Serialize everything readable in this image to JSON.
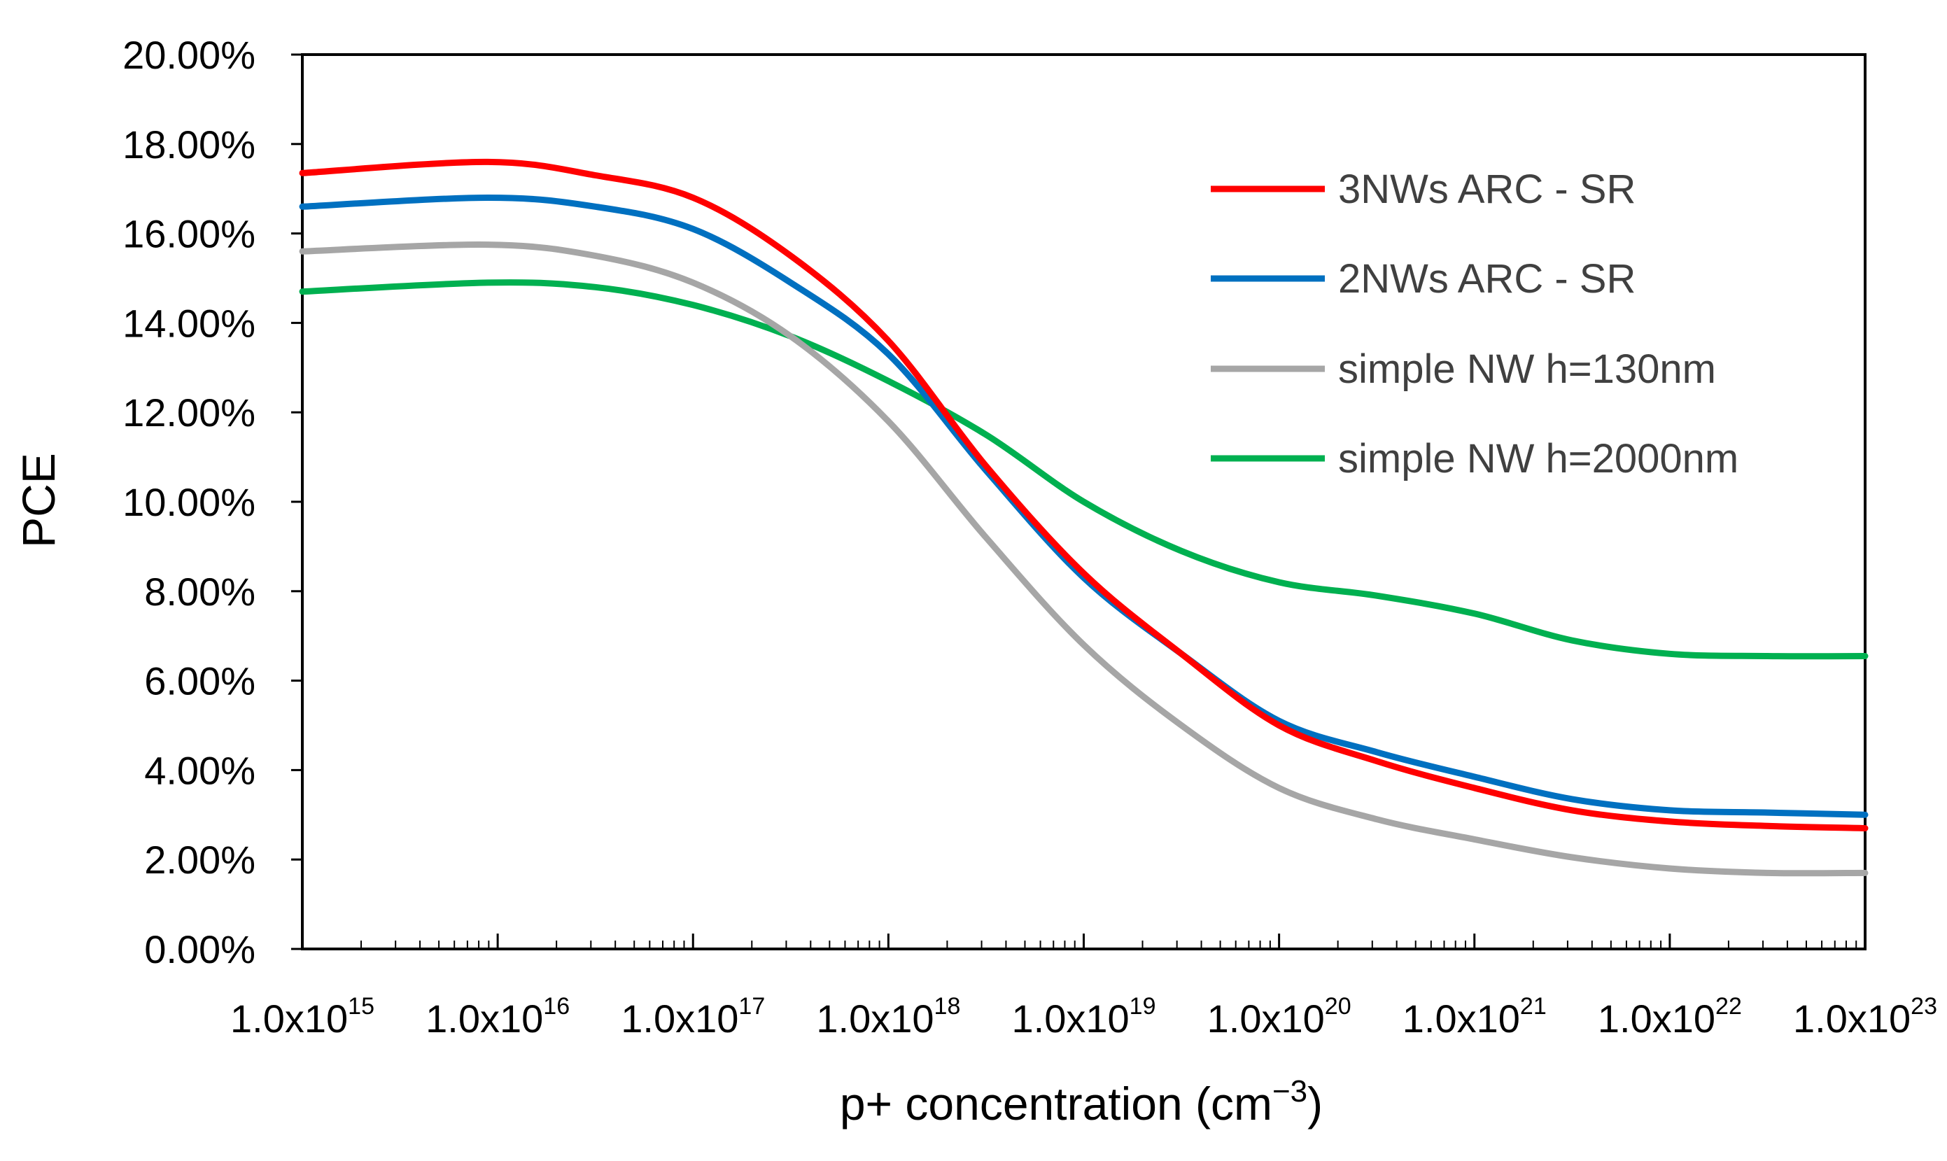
{
  "chart_data": {
    "type": "line",
    "title": "",
    "xlabel": {
      "base": "p+ concentration (cm",
      "sup": "−3",
      "suffix": ")"
    },
    "ylabel": "PCE",
    "x_scale": "log",
    "xlim_exponent": [
      15,
      23
    ],
    "ylim": [
      0,
      20
    ],
    "y_tick_values": [
      0,
      2,
      4,
      6,
      8,
      10,
      12,
      14,
      16,
      18,
      20
    ],
    "y_tick_labels": [
      "0.00%",
      "2.00%",
      "4.00%",
      "6.00%",
      "8.00%",
      "10.00%",
      "12.00%",
      "14.00%",
      "16.00%",
      "18.00%",
      "20.00%"
    ],
    "x_tick_exponents": [
      15,
      16,
      17,
      18,
      19,
      20,
      21,
      22,
      23
    ],
    "x_tick_labels": [
      {
        "base": "1.0x10",
        "exp": "15"
      },
      {
        "base": "1.0x10",
        "exp": "16"
      },
      {
        "base": "1.0x10",
        "exp": "17"
      },
      {
        "base": "1.0x10",
        "exp": "18"
      },
      {
        "base": "1.0x10",
        "exp": "19"
      },
      {
        "base": "1.0x10",
        "exp": "20"
      },
      {
        "base": "1.0x10",
        "exp": "21"
      },
      {
        "base": "1.0x10",
        "exp": "22"
      },
      {
        "base": "1.0x10",
        "exp": "23"
      }
    ],
    "legend_position": "right",
    "series": [
      {
        "name": "3NWs ARC - SR",
        "color": "#ff0000",
        "x_exponent": [
          15.0,
          15.95,
          16.5,
          17.0,
          17.5,
          18.0,
          18.5,
          19.0,
          19.5,
          20.0,
          20.5,
          21.0,
          21.5,
          22.0,
          22.5,
          23.0
        ],
        "y": [
          17.35,
          17.6,
          17.3,
          16.8,
          15.5,
          13.6,
          10.8,
          8.4,
          6.6,
          5.0,
          4.2,
          3.6,
          3.1,
          2.85,
          2.75,
          2.7
        ]
      },
      {
        "name": "2NWs ARC - SR",
        "color": "#0070c0",
        "x_exponent": [
          15.0,
          15.95,
          16.5,
          17.0,
          17.5,
          18.0,
          18.5,
          19.0,
          19.5,
          20.0,
          20.5,
          21.0,
          21.5,
          22.0,
          22.5,
          23.0
        ],
        "y": [
          16.6,
          16.8,
          16.6,
          16.1,
          14.9,
          13.3,
          10.7,
          8.3,
          6.6,
          5.1,
          4.4,
          3.85,
          3.35,
          3.1,
          3.05,
          3.0
        ]
      },
      {
        "name": "simple NW h=130nm",
        "color": "#a6a6a6",
        "x_exponent": [
          15.0,
          15.95,
          16.5,
          17.0,
          17.5,
          18.0,
          18.5,
          19.0,
          19.5,
          20.0,
          20.5,
          21.0,
          21.5,
          22.0,
          22.5,
          23.0
        ],
        "y": [
          15.6,
          15.75,
          15.5,
          14.9,
          13.7,
          11.8,
          9.2,
          6.8,
          5.0,
          3.6,
          2.9,
          2.45,
          2.05,
          1.8,
          1.7,
          1.7
        ]
      },
      {
        "name": "simple NW h=2000nm",
        "color": "#00b050",
        "x_exponent": [
          15.0,
          15.95,
          16.5,
          17.0,
          17.5,
          18.0,
          18.5,
          19.0,
          19.5,
          20.0,
          20.5,
          21.0,
          21.5,
          22.0,
          22.5,
          23.0
        ],
        "y": [
          14.7,
          14.9,
          14.8,
          14.4,
          13.7,
          12.7,
          11.5,
          10.0,
          8.9,
          8.2,
          7.9,
          7.5,
          6.9,
          6.6,
          6.55,
          6.55
        ]
      }
    ]
  }
}
